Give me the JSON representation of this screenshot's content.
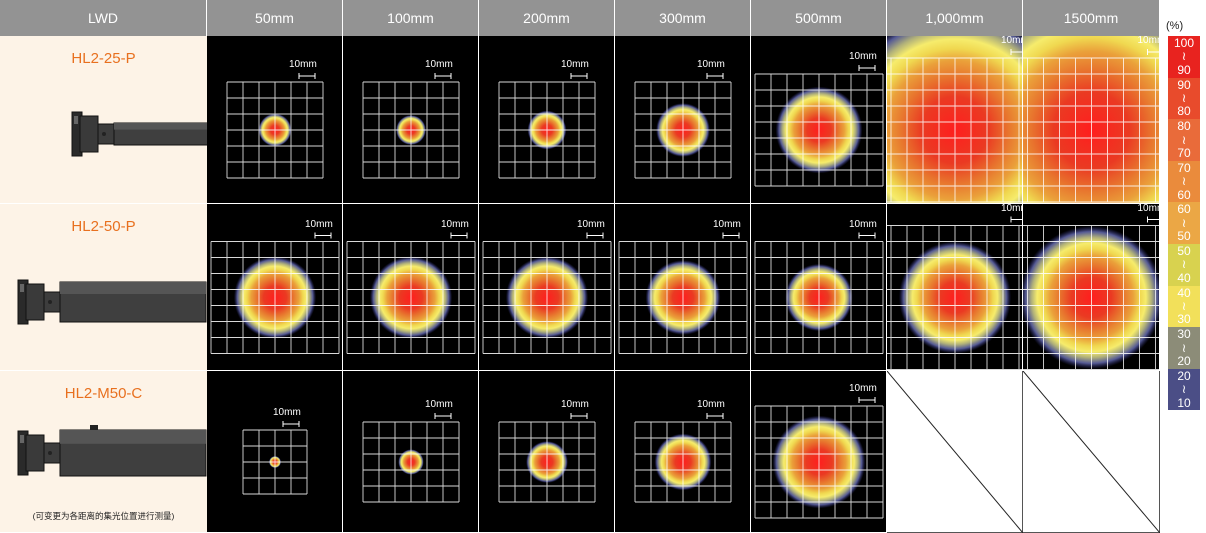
{
  "header": {
    "lwd_label": "LWD",
    "distances": [
      "50mm",
      "100mm",
      "200mm",
      "300mm",
      "500mm",
      "1,000mm",
      "1500mm"
    ]
  },
  "models": [
    {
      "name": "HL2-25-P",
      "note": ""
    },
    {
      "name": "HL2-50-P",
      "note": ""
    },
    {
      "name": "HL2-M50-C",
      "note": "(可变更为各距离的集光位置进行测量)"
    }
  ],
  "scale_label": "10mm",
  "legend": {
    "unit": "(%)",
    "bands": [
      {
        "high": "100",
        "low": "90",
        "color": "#e8231f"
      },
      {
        "high": "90",
        "low": "80",
        "color": "#e84b2c"
      },
      {
        "high": "80",
        "low": "70",
        "color": "#e96b3a"
      },
      {
        "high": "70",
        "low": "60",
        "color": "#ea8b3c"
      },
      {
        "high": "60",
        "low": "50",
        "color": "#eba745"
      },
      {
        "high": "50",
        "low": "40",
        "color": "#d8d24f"
      },
      {
        "high": "40",
        "low": "30",
        "color": "#f2e05a"
      },
      {
        "high": "30",
        "low": "20",
        "color": "#8c8c78"
      },
      {
        "high": "20",
        "low": "10",
        "color": "#4b4e86"
      }
    ]
  },
  "patterns": [
    [
      {
        "grid": [
          6,
          6
        ],
        "spot": 0.22,
        "scale": true
      },
      {
        "grid": [
          6,
          6
        ],
        "spot": 0.2,
        "scale": true
      },
      {
        "grid": [
          6,
          6
        ],
        "spot": 0.26,
        "scale": true
      },
      {
        "grid": [
          6,
          6
        ],
        "spot": 0.36,
        "scale": true
      },
      {
        "grid": [
          8,
          7
        ],
        "spot": 0.58,
        "scale": true
      },
      {
        "grid": [
          10,
          9
        ],
        "spot": 1.6,
        "scale": true
      },
      {
        "grid": [
          10,
          9
        ],
        "spot": 1.8,
        "scale": true
      }
    ],
    [
      {
        "grid": [
          8,
          7
        ],
        "spot": 0.55,
        "scale": true
      },
      {
        "grid": [
          8,
          7
        ],
        "spot": 0.55,
        "scale": true
      },
      {
        "grid": [
          8,
          7
        ],
        "spot": 0.55,
        "scale": true
      },
      {
        "grid": [
          8,
          7
        ],
        "spot": 0.5,
        "scale": true
      },
      {
        "grid": [
          8,
          7
        ],
        "spot": 0.45,
        "scale": true
      },
      {
        "grid": [
          10,
          9
        ],
        "spot": 0.75,
        "scale": true
      },
      {
        "grid": [
          10,
          9
        ],
        "spot": 0.95,
        "scale": true
      }
    ],
    [
      {
        "grid": [
          4,
          4
        ],
        "spot": 0.08,
        "scale": true
      },
      {
        "grid": [
          6,
          5
        ],
        "spot": 0.17,
        "scale": true
      },
      {
        "grid": [
          6,
          5
        ],
        "spot": 0.28,
        "scale": true
      },
      {
        "grid": [
          6,
          5
        ],
        "spot": 0.38,
        "scale": true
      },
      {
        "grid": [
          8,
          7
        ],
        "spot": 0.62,
        "scale": true
      },
      null,
      null
    ]
  ]
}
